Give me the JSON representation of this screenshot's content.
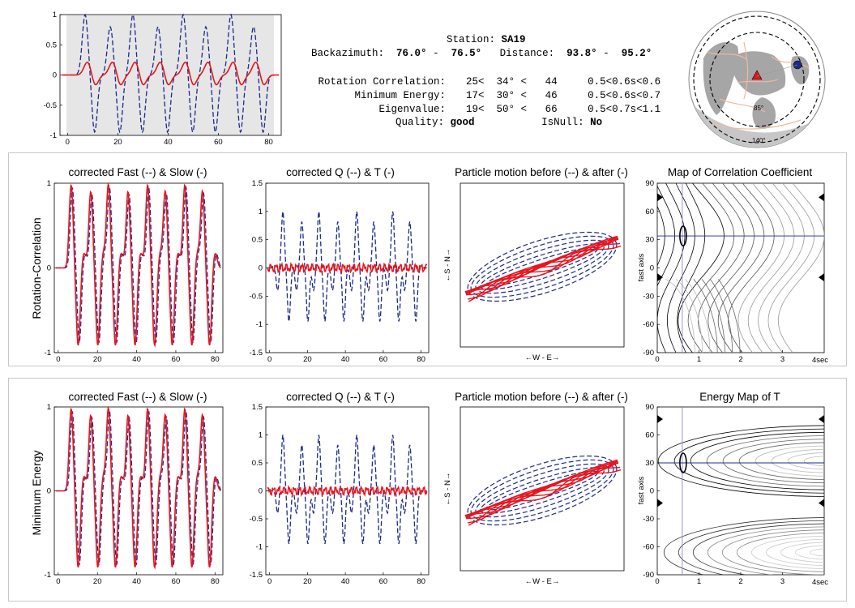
{
  "info": {
    "station_label": "Station:",
    "station": "SA19",
    "backazimuth_label": "Backazimuth:",
    "backazimuth_min": "76.0°",
    "backazimuth_sep": "-",
    "backazimuth_max": "76.5°",
    "distance_label": "Distance:",
    "distance_min": "93.8°",
    "distance_sep": "-",
    "distance_max": "95.2°",
    "rows": [
      {
        "label": "Rotation Correlation:",
        "lo": "25<",
        "mid": "34°",
        "lt": "<",
        "hi": "44",
        "dt": "0.5<0.6s<0.6"
      },
      {
        "label": "Minimum Energy:",
        "lo": "17<",
        "mid": "30°",
        "lt": "<",
        "hi": "46",
        "dt": "0.5<0.6s<0.7"
      },
      {
        "label": "Eigenvalue:",
        "lo": "19<",
        "mid": "50°",
        "lt": "<",
        "hi": "66",
        "dt": "0.5<0.7s<1.1"
      }
    ],
    "quality_label": "Quality:",
    "quality": "good",
    "isnull_label": "IsNull:",
    "isnull": "No"
  },
  "globe": {
    "ring_label_inner": "85°",
    "ring_label_outer": "140°"
  },
  "colors": {
    "fast_blue": "#1b2a8c",
    "slow_red": "#e8141e",
    "window_gray": "#e6e6e6"
  },
  "titles": {
    "fast_slow": "corrected Fast (--) & Slow (-)",
    "qt": "corrected Q (--) & T (-)",
    "pm": "Particle motion before (--) & after (-)",
    "corr_map": "Map of Correlation Coefficient",
    "energy_map": "Energy Map of T"
  },
  "row_labels": {
    "rc": "Rotation-Correlation",
    "me": "Minimum Energy"
  },
  "axis_labels": {
    "pm_x": "←W - E→",
    "pm_y": "←S - N→",
    "fast_axis": "fast axis",
    "sec": "4sec"
  },
  "chart_data": [
    {
      "id": "overview",
      "type": "line",
      "x": [
        0,
        80
      ],
      "xticks": [
        0,
        20,
        40,
        60,
        80
      ],
      "xlim": [
        -3,
        85
      ],
      "ylim": [
        -1,
        1
      ],
      "yticks": [
        1,
        0.5,
        0,
        -0.5,
        -1
      ],
      "ytick_labels": [
        "1",
        "0.5",
        "0",
        "-0.5",
        "-1"
      ],
      "grid": false,
      "window": [
        0,
        82
      ],
      "series": [
        {
          "style": "dashed",
          "color": "blue"
        },
        {
          "style": "solid",
          "color": "red"
        }
      ]
    },
    {
      "id": "rc_fast_slow",
      "type": "line",
      "xlim": [
        -2,
        84
      ],
      "ylim": [
        -1,
        1
      ],
      "xticks": [
        0,
        20,
        40,
        60,
        80
      ],
      "yticks": [
        1,
        0,
        -1
      ],
      "ytick_labels": [
        "1",
        "0",
        "-1"
      ],
      "grid": false
    },
    {
      "id": "rc_qt",
      "type": "line",
      "xlim": [
        -2,
        84
      ],
      "ylim": [
        -1.5,
        1.5
      ],
      "xticks": [
        0,
        20,
        40,
        60,
        80
      ],
      "yticks": [
        1.5,
        1,
        0.5,
        0,
        -0.5,
        -1,
        -1.5
      ],
      "ytick_labels": [
        "1.5",
        "1",
        "0.5",
        "0",
        "-0.5",
        "-1",
        "-1.5"
      ],
      "grid": false
    },
    {
      "id": "rc_pm",
      "type": "scatter",
      "xticks": [],
      "yticks": [],
      "grid": false
    },
    {
      "id": "rc_map",
      "type": "heatmap",
      "xlim": [
        0,
        4
      ],
      "ylim": [
        -90,
        90
      ],
      "xticks": [
        0,
        1,
        2,
        3
      ],
      "xtick_labels": [
        "0",
        "1",
        "2",
        "3"
      ],
      "yticks": [
        90,
        60,
        30,
        0,
        -30,
        -60,
        -90
      ],
      "ytick_labels": [
        "90",
        "60",
        "30",
        "0",
        "-30",
        "-60",
        "-90"
      ],
      "best": {
        "dt": 0.6,
        "phi": 34
      },
      "markers_phi": [
        75,
        -10
      ]
    },
    {
      "id": "me_fast_slow",
      "type": "line",
      "xlim": [
        -2,
        84
      ],
      "ylim": [
        -1,
        1
      ],
      "xticks": [
        0,
        20,
        40,
        60,
        80
      ],
      "yticks": [
        1,
        0,
        -1
      ],
      "ytick_labels": [
        "1",
        "0",
        "-1"
      ],
      "grid": false
    },
    {
      "id": "me_qt",
      "type": "line",
      "xlim": [
        -2,
        84
      ],
      "ylim": [
        -1.5,
        1.5
      ],
      "xticks": [
        0,
        20,
        40,
        60,
        80
      ],
      "yticks": [
        1.5,
        1,
        0.5,
        0,
        -0.5,
        -1,
        -1.5
      ],
      "ytick_labels": [
        "1.5",
        "1",
        "0.5",
        "0",
        "-0.5",
        "-1",
        "-1.5"
      ],
      "grid": false
    },
    {
      "id": "me_pm",
      "type": "scatter",
      "xticks": [],
      "yticks": [],
      "grid": false
    },
    {
      "id": "me_map",
      "type": "heatmap",
      "xlim": [
        0,
        4
      ],
      "ylim": [
        -90,
        90
      ],
      "xticks": [
        0,
        1,
        2,
        3
      ],
      "xtick_labels": [
        "0",
        "1",
        "2",
        "3"
      ],
      "yticks": [
        90,
        60,
        30,
        0,
        -30,
        -60,
        -90
      ],
      "ytick_labels": [
        "90",
        "60",
        "30",
        "0",
        "-30",
        "-60",
        "-90"
      ],
      "best": {
        "dt": 0.6,
        "phi": 30
      },
      "markers_phi": [
        77,
        -13
      ]
    }
  ]
}
